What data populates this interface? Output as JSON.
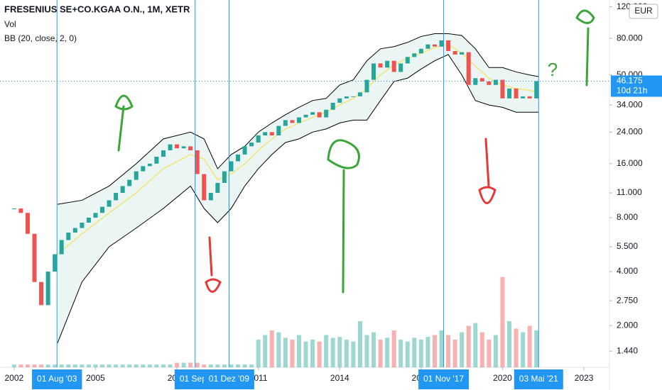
{
  "chart_data": {
    "type": "candlestick",
    "title": "FRESENIUS SE+CO.KGAA O.N., 1M, XETR",
    "indicators": [
      "Vol",
      "BB (20, close, 2, 0)"
    ],
    "currency": "EUR",
    "log_scale": true,
    "grid": false,
    "xlim": [
      2001.48,
      2023.94
    ],
    "xticks": [
      2002,
      2005,
      2008,
      2011,
      2014,
      2017,
      2020,
      2023
    ],
    "ylim": [
      1.17,
      131
    ],
    "yticks": [
      {
        "value": 120,
        "label": "120.000"
      },
      {
        "value": 80,
        "label": "80.000"
      },
      {
        "value": 50,
        "label": "50.000"
      },
      {
        "value": 34,
        "label": "34.000"
      },
      {
        "value": 24,
        "label": "24.000"
      },
      {
        "value": 16,
        "label": "16.000"
      },
      {
        "value": 11,
        "label": "11.000"
      },
      {
        "value": 8,
        "label": "8.000"
      },
      {
        "value": 5.5,
        "label": "5.500"
      },
      {
        "value": 4,
        "label": "4.000"
      },
      {
        "value": 2.75,
        "label": "2.750"
      },
      {
        "value": 2,
        "label": "2.000"
      },
      {
        "value": 1.44,
        "label": "1.440"
      }
    ],
    "y2lim": [
      0,
      100
    ],
    "price": {
      "up_color": "#26a69a",
      "down_color": "#ef5350",
      "x": [
        2002,
        2002.25,
        2002.5,
        2002.75,
        2003,
        2003.25,
        2003.5,
        2003.75,
        2004,
        2004.25,
        2004.5,
        2004.75,
        2005,
        2005.25,
        2005.5,
        2005.75,
        2006,
        2006.25,
        2006.5,
        2006.75,
        2007,
        2007.25,
        2007.5,
        2007.75,
        2008,
        2008.25,
        2008.5,
        2008.75,
        2009,
        2009.25,
        2009.5,
        2009.75,
        2010,
        2010.25,
        2010.5,
        2010.75,
        2011,
        2011.25,
        2011.5,
        2011.75,
        2012,
        2012.25,
        2012.5,
        2012.75,
        2013,
        2013.25,
        2013.5,
        2013.75,
        2014,
        2014.25,
        2014.5,
        2014.75,
        2015,
        2015.25,
        2015.5,
        2015.75,
        2016,
        2016.25,
        2016.5,
        2016.75,
        2017,
        2017.25,
        2017.5,
        2017.75,
        2018,
        2018.25,
        2018.5,
        2018.75,
        2019,
        2019.25,
        2019.5,
        2019.75,
        2020,
        2020.25,
        2020.5,
        2020.75,
        2021,
        2021.25
      ],
      "values": [
        9.0,
        8.5,
        6.5,
        3.5,
        2.6,
        4.0,
        5.0,
        6.0,
        6.6,
        7.0,
        7.5,
        8.0,
        8.5,
        9.2,
        10.0,
        11.0,
        12.0,
        13.0,
        14.5,
        15.5,
        16.0,
        17.5,
        19.0,
        20.5,
        19.5,
        20.0,
        19.0,
        14.0,
        10.0,
        11.0,
        12.5,
        14.5,
        16.5,
        18.0,
        20.0,
        21.0,
        23.0,
        24.0,
        23.0,
        26.0,
        28.0,
        27.0,
        29.0,
        30.0,
        31.0,
        29.0,
        32.0,
        35.0,
        37.0,
        38.0,
        38.0,
        40.0,
        47.0,
        58.0,
        55.0,
        60.0,
        52.0,
        58.0,
        63.0,
        66.0,
        70.0,
        74.0,
        72.0,
        78.0,
        68.0,
        65.0,
        67.0,
        44.0,
        48.0,
        46.0,
        44.0,
        47.0,
        37.0,
        42.0,
        37.0,
        38.0,
        37.0,
        46.175
      ]
    },
    "volume": {
      "axis": "y2",
      "values": [
        3,
        3,
        3,
        3,
        3,
        3,
        3,
        3,
        3,
        3,
        3,
        3,
        3,
        3,
        3,
        3,
        3,
        3,
        3,
        3,
        3,
        3,
        3,
        3,
        5,
        5,
        5,
        5,
        3,
        3,
        3,
        3,
        3,
        3,
        3,
        3,
        30,
        35,
        40,
        38,
        32,
        30,
        35,
        28,
        30,
        28,
        35,
        32,
        33,
        30,
        28,
        50,
        35,
        38,
        30,
        32,
        40,
        30,
        28,
        32,
        30,
        33,
        35,
        40,
        35,
        30,
        38,
        45,
        48,
        38,
        30,
        35,
        98,
        50,
        42,
        38,
        45,
        40
      ]
    },
    "bands": {
      "line_color": "#000000",
      "basis_color": "#f2e35b",
      "fill_color": "#e6f2f0",
      "x": [
        2003.6,
        2004.5,
        2005.5,
        2006.5,
        2007.5,
        2008.5,
        2009,
        2009.5,
        2010,
        2010.5,
        2011,
        2011.5,
        2012,
        2012.5,
        2013,
        2013.5,
        2014,
        2014.5,
        2015,
        2015.5,
        2016,
        2016.5,
        2017,
        2017.5,
        2018,
        2018.5,
        2019,
        2019.5,
        2020,
        2020.5,
        2021,
        2021.33
      ],
      "upper": [
        9.5,
        10,
        12,
        16,
        22,
        24,
        22,
        15,
        18,
        20,
        24,
        27,
        30,
        33,
        36,
        37,
        44,
        47,
        60,
        70,
        72,
        76,
        82,
        85,
        85,
        83,
        70,
        55,
        55,
        52,
        50,
        49
      ],
      "basis": [
        5,
        6.5,
        8.5,
        11,
        15,
        18,
        17,
        13,
        14,
        16,
        19,
        22,
        25,
        27,
        29,
        31,
        34,
        37,
        42,
        50,
        57,
        62,
        66,
        71,
        74,
        66,
        56,
        48,
        44,
        42,
        41,
        40
      ],
      "lower": [
        1.6,
        3.5,
        5.5,
        7,
        9,
        12,
        9,
        7.5,
        9,
        12,
        15,
        18,
        21,
        22,
        24,
        25,
        27,
        28,
        28,
        36,
        46,
        48,
        54,
        60,
        65,
        50,
        36,
        34,
        33,
        31,
        31,
        31
      ]
    },
    "markers": [
      {
        "x": 2003.58,
        "label": "01 Aug '03"
      },
      {
        "x": 2008.67,
        "label": "01 Sep '"
      },
      {
        "x": 2009.92,
        "label": "01 Dez '09"
      },
      {
        "x": 2017.83,
        "label": "01 Nov '17"
      },
      {
        "x": 2021.33,
        "label": "03 Mai '21"
      }
    ],
    "last_price": 46.175,
    "countdown": "10d 21h",
    "annotation": "?"
  }
}
